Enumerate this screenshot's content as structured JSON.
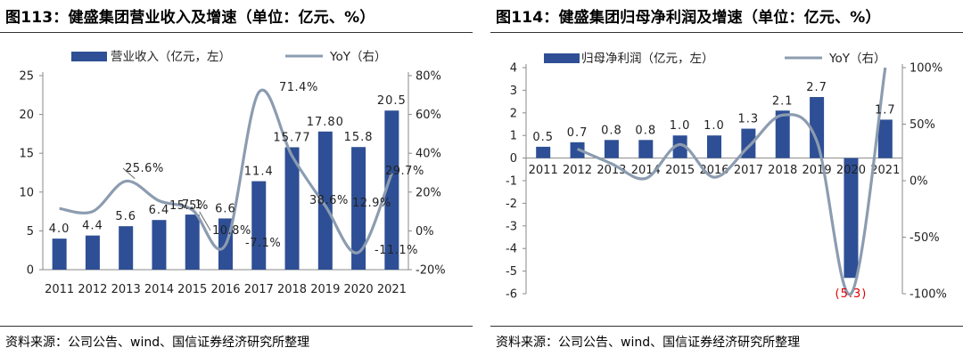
{
  "chart_data": [
    {
      "type": "bar",
      "title": "图113：健盛集团营业收入及增速（单位：亿元、%）",
      "source": "资料来源：公司公告、wind、国信证券经济研究所整理",
      "categories": [
        "2011",
        "2012",
        "2013",
        "2014",
        "2015",
        "2016",
        "2017",
        "2018",
        "2019",
        "2020",
        "2021"
      ],
      "series": [
        {
          "name": "营业收入（亿元，左）",
          "type": "bar",
          "axis": "left",
          "values": [
            4.0,
            4.4,
            5.6,
            6.4,
            7.1,
            6.6,
            11.4,
            15.77,
            17.8,
            15.8,
            20.5
          ],
          "labels": [
            "4.0",
            "4.4",
            "5.6",
            "6.4",
            "7.1",
            "6.6",
            "11.4",
            "15.77",
            "17.80",
            "15.8",
            "20.5"
          ]
        },
        {
          "name": "YoY（右）",
          "type": "line",
          "axis": "right",
          "values": [
            11.5,
            10.0,
            25.6,
            15.5,
            10.8,
            -7.1,
            71.4,
            38.6,
            12.9,
            -11.1,
            29.7
          ],
          "labels": [
            "",
            "",
            "25.6%",
            "15.5%",
            "10.8%",
            "-7.1%",
            "71.4%",
            "38.6%",
            "12.9%",
            "-11.1%",
            "29.7%"
          ]
        }
      ],
      "y_left": {
        "min": 0,
        "max": 25,
        "ticks": [
          0,
          5,
          10,
          15,
          20,
          25
        ],
        "tick_labels": [
          "0",
          "5",
          "10",
          "15",
          "20",
          "25"
        ]
      },
      "y_right": {
        "min": -20,
        "max": 80,
        "ticks": [
          -20,
          0,
          20,
          40,
          60,
          80
        ],
        "tick_labels": [
          "-20%",
          "0%",
          "20%",
          "40%",
          "60%",
          "80%"
        ]
      },
      "legend_position": "top",
      "colors": {
        "bar": "#2e4f95",
        "line": "#8c9cb0"
      }
    },
    {
      "type": "bar",
      "title": "图114：健盛集团归母净利润及增速（单位：亿元、%）",
      "source": "资料来源：公司公告、wind、国信证券经济研究所整理",
      "categories": [
        "2011",
        "2012",
        "2013",
        "2014",
        "2015",
        "2016",
        "2017",
        "2018",
        "2019",
        "2020",
        "2021"
      ],
      "series": [
        {
          "name": "归母净利润（亿元，左）",
          "type": "bar",
          "axis": "left",
          "values": [
            0.5,
            0.7,
            0.8,
            0.8,
            1.0,
            1.0,
            1.3,
            2.1,
            2.7,
            -5.3,
            1.7
          ],
          "labels": [
            "0.5",
            "0.7",
            "0.8",
            "0.8",
            "1.0",
            "1.0",
            "1.3",
            "2.1",
            "2.7",
            "(5.3)",
            "1.7"
          ]
        },
        {
          "name": "YoY（右）",
          "type": "line",
          "axis": "right",
          "values": [
            null,
            28,
            15,
            2,
            32,
            3,
            30,
            58,
            35,
            -100,
            100
          ],
          "labels": [
            "",
            "",
            "",
            "",
            "",
            "",
            "",
            "",
            "",
            "",
            ""
          ]
        }
      ],
      "y_left": {
        "min": -6,
        "max": 4,
        "ticks": [
          -6,
          -5,
          -4,
          -3,
          -2,
          -1,
          0,
          1,
          2,
          3,
          4
        ],
        "tick_labels": [
          "-6",
          "-5",
          "-4",
          "-3",
          "-2",
          "-1",
          "0",
          "1",
          "2",
          "3",
          "4"
        ]
      },
      "y_right": {
        "min": -100,
        "max": 100,
        "ticks": [
          -100,
          -50,
          0,
          50,
          100
        ],
        "tick_labels": [
          "-100%",
          "-50%",
          "0%",
          "50%",
          "100%"
        ]
      },
      "legend_position": "top",
      "negative_label_color": "#e00000",
      "colors": {
        "bar": "#2e4f95",
        "line": "#8c9cb0"
      }
    }
  ]
}
